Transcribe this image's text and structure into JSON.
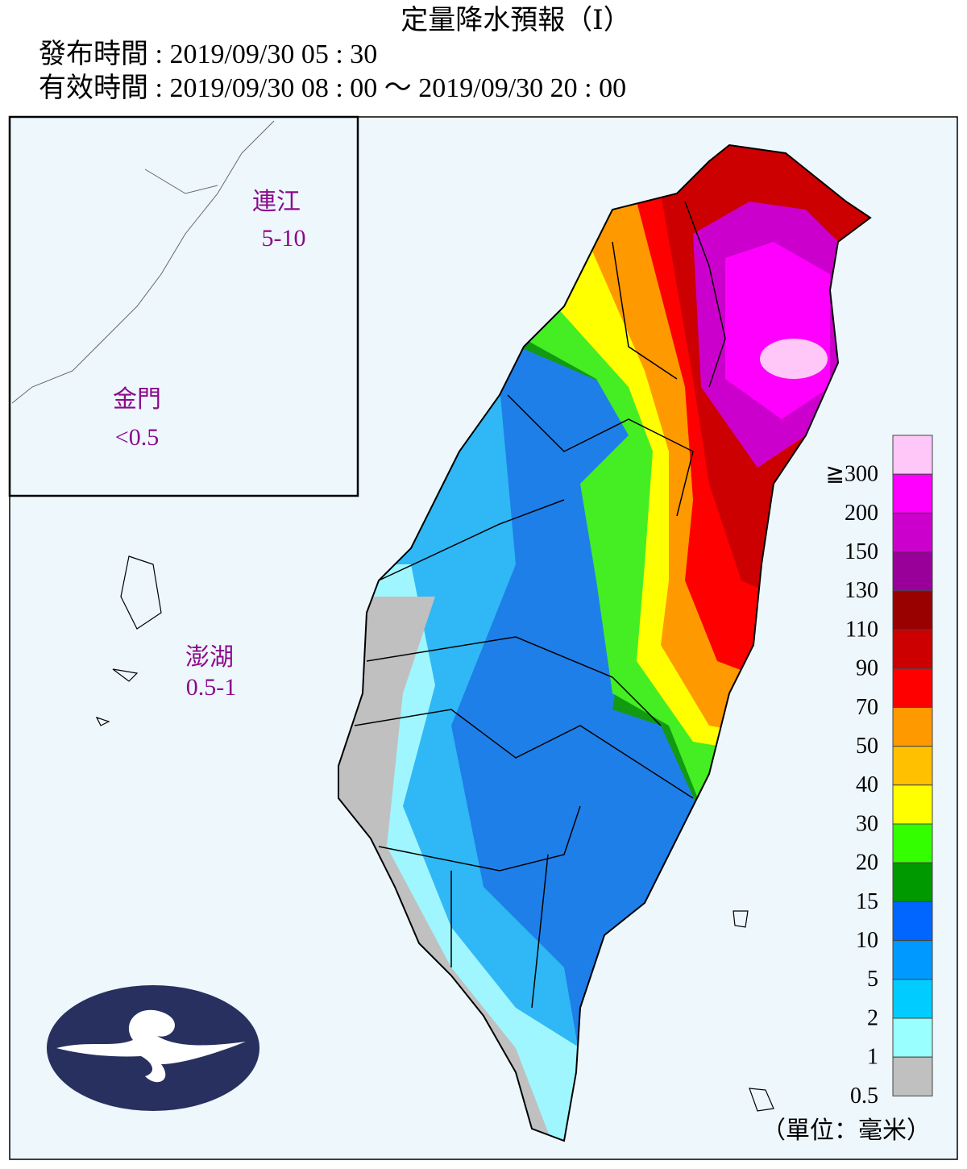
{
  "header": {
    "title": "定量降水預報（Ⅰ）",
    "issued": "發布時間 : 2019/09/30 05 : 30",
    "valid": "有效時間 : 2019/09/30 08 : 00 ～ 2019/09/30 20 : 00"
  },
  "inset": {
    "labels": [
      {
        "name": "連江",
        "amount": "5-10"
      },
      {
        "name": "金門",
        "amount": "<0.5"
      },
      {
        "name": "澎湖",
        "amount": "0.5-1"
      }
    ]
  },
  "legend": {
    "unit": "（單位：毫米）",
    "items": [
      {
        "label": "≧300",
        "color": "#ffc6f8"
      },
      {
        "label": "200",
        "color": "#ff00ff"
      },
      {
        "label": "150",
        "color": "#cc00cc"
      },
      {
        "label": "130",
        "color": "#990099"
      },
      {
        "label": "110",
        "color": "#990000"
      },
      {
        "label": "90",
        "color": "#cc0000"
      },
      {
        "label": "70",
        "color": "#ff0000"
      },
      {
        "label": "50",
        "color": "#ff9900"
      },
      {
        "label": "40",
        "color": "#ffc000"
      },
      {
        "label": "30",
        "color": "#ffff00"
      },
      {
        "label": "20",
        "color": "#33ff00"
      },
      {
        "label": "15",
        "color": "#009900"
      },
      {
        "label": "10",
        "color": "#0066ff"
      },
      {
        "label": "5",
        "color": "#0099ff"
      },
      {
        "label": "2",
        "color": "#00ccff"
      },
      {
        "label": "1",
        "color": "#99ffff"
      },
      {
        "label": "0.5",
        "color": "#c0c0c0"
      }
    ]
  }
}
